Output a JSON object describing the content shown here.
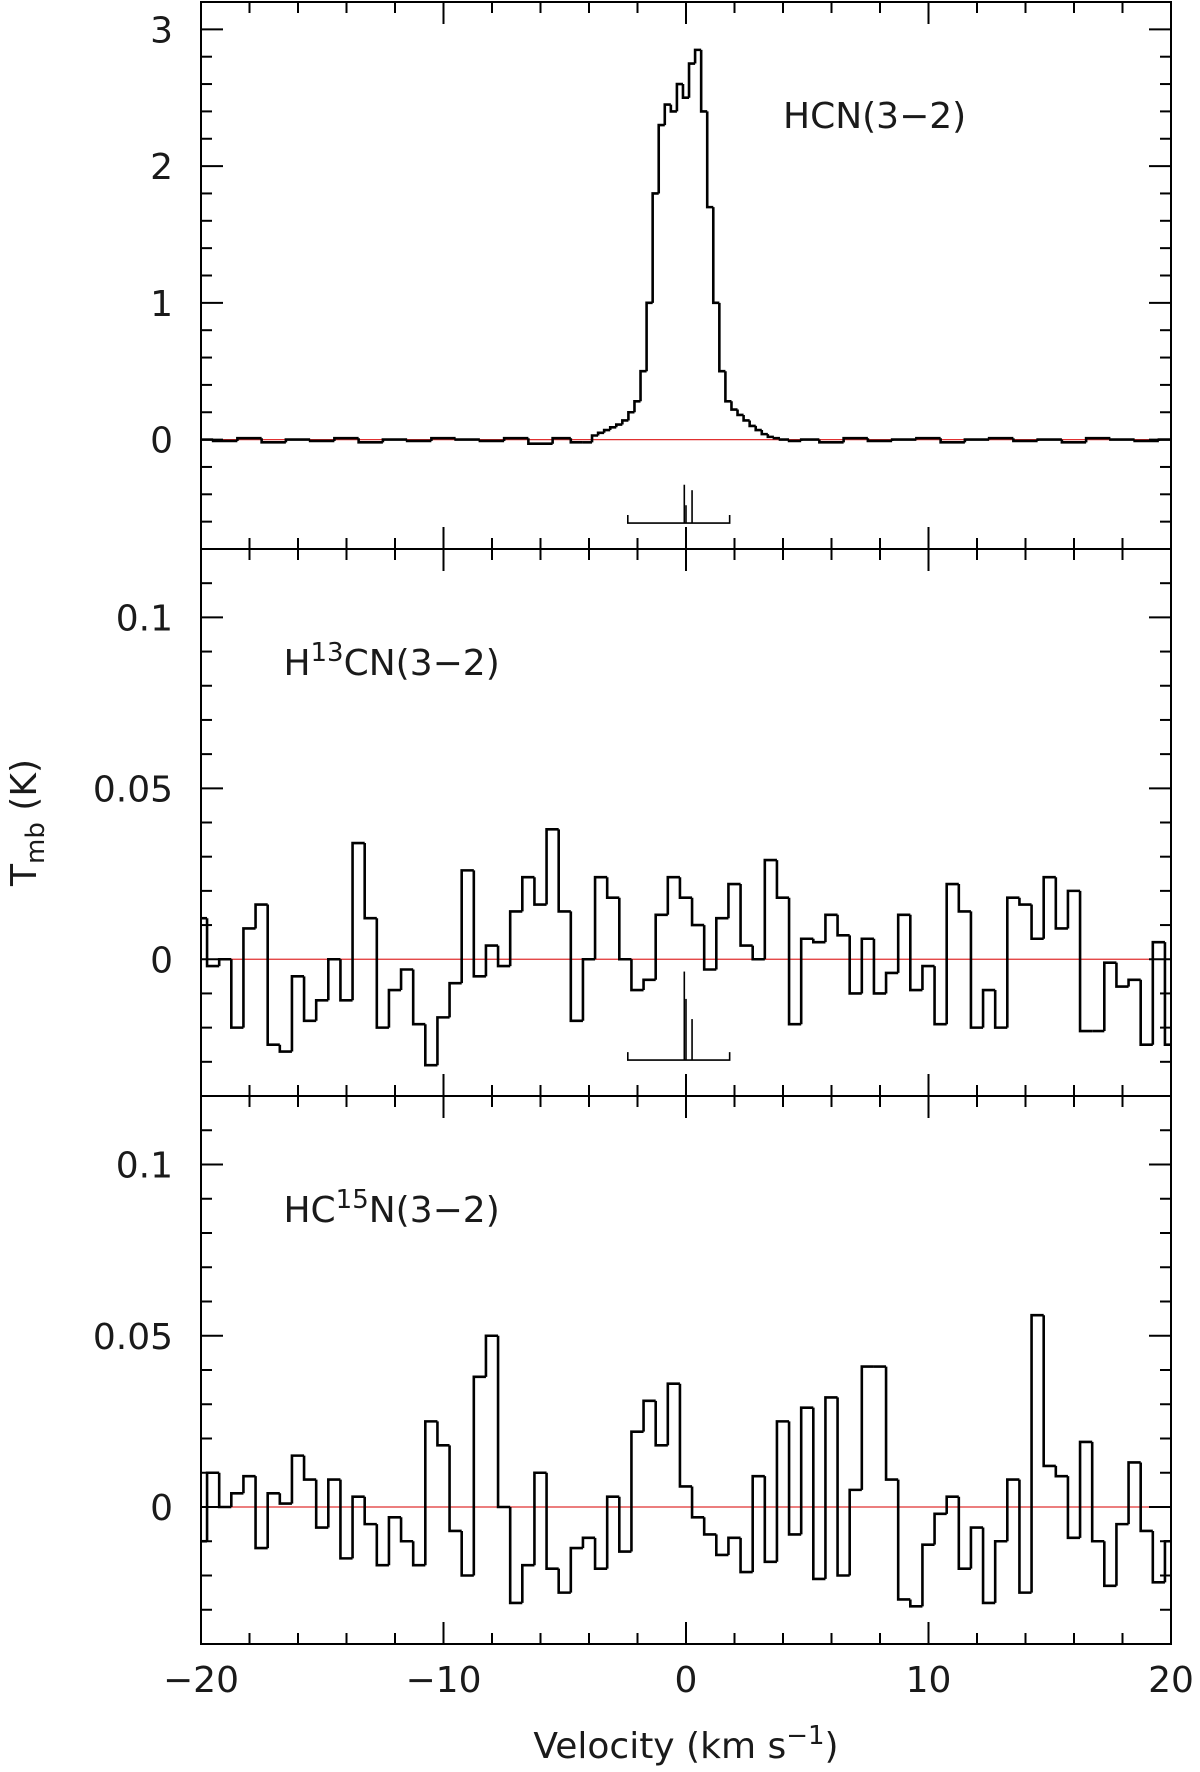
{
  "chart_data": [
    {
      "type": "line",
      "step": true,
      "sharex": true,
      "color": "#000000",
      "zero_line_color": "#e03030",
      "label": [
        {
          "text": "HCN(3−2)"
        }
      ],
      "ylim": [
        -0.8,
        3.2
      ],
      "yticks": [
        0,
        1,
        2,
        3
      ],
      "yminorticks": [
        -0.6,
        -0.4,
        -0.2,
        0.2,
        0.4,
        0.6,
        0.8,
        1.2,
        1.4,
        1.6,
        1.8,
        2.2,
        2.4,
        2.6,
        2.8,
        3.2
      ],
      "x": [
        -20,
        -19,
        -18,
        -17,
        -16,
        -15,
        -14,
        -13,
        -12,
        -11,
        -10,
        -9,
        -8,
        -7,
        -6,
        -5,
        -4.5,
        -4,
        -3.75,
        -3.5,
        -3.25,
        -3,
        -2.75,
        -2.5,
        -2.25,
        -2,
        -1.75,
        -1.5,
        -1.25,
        -1,
        -0.75,
        -0.5,
        -0.25,
        0,
        0.25,
        0.5,
        0.75,
        1,
        1.25,
        1.5,
        1.75,
        2,
        2.25,
        2.5,
        2.75,
        3,
        3.25,
        3.5,
        3.75,
        4,
        4.5,
        5,
        6,
        7,
        8,
        9,
        10,
        11,
        12,
        13,
        14,
        15,
        16,
        17,
        18,
        19,
        20
      ],
      "values": [
        0,
        -0.01,
        0.01,
        -0.02,
        0,
        -0.01,
        0.01,
        -0.02,
        0,
        -0.01,
        0.01,
        0,
        -0.01,
        0.01,
        -0.03,
        0.01,
        -0.02,
        -0.02,
        0.03,
        0.05,
        0.07,
        0.09,
        0.11,
        0.14,
        0.2,
        0.28,
        0.5,
        1.0,
        1.8,
        2.3,
        2.45,
        2.4,
        2.6,
        2.5,
        2.75,
        2.85,
        2.4,
        1.7,
        1.0,
        0.5,
        0.28,
        0.22,
        0.18,
        0.14,
        0.1,
        0.07,
        0.04,
        0.02,
        0.01,
        0,
        -0.01,
        0,
        -0.02,
        0.01,
        -0.01,
        0,
        0.01,
        -0.02,
        0,
        0.01,
        -0.01,
        0,
        -0.02,
        0.01,
        0,
        -0.01,
        0
      ],
      "hyperfine": {
        "base": -0.61,
        "span": [
          -2.4,
          1.8
        ],
        "lines": [
          [
            -0.07,
            -0.33
          ],
          [
            0,
            -0.48
          ],
          [
            0.25,
            -0.37
          ]
        ]
      }
    },
    {
      "type": "line",
      "step": true,
      "sharex": true,
      "color": "#000000",
      "zero_line_color": "#e03030",
      "label": [
        {
          "text": "H"
        },
        {
          "text": "13",
          "sup": true
        },
        {
          "text": "CN(3−2)"
        }
      ],
      "ylabel": [
        {
          "text": "T"
        },
        {
          "text": "mb",
          "sub": true
        },
        {
          "text": " (K)"
        }
      ],
      "ylim": [
        -0.04,
        0.12
      ],
      "yticks": [
        0,
        0.05,
        0.1
      ],
      "yminorticks": [
        -0.03,
        -0.02,
        -0.01,
        0.01,
        0.02,
        0.03,
        0.04,
        0.06,
        0.07,
        0.08,
        0.09,
        0.11
      ],
      "x": [
        -20,
        -19.5,
        -19,
        -18.5,
        -18,
        -17.5,
        -17,
        -16.5,
        -16,
        -15.5,
        -15,
        -14.5,
        -14,
        -13.5,
        -13,
        -12.5,
        -12,
        -11.5,
        -11,
        -10.5,
        -10,
        -9.5,
        -9,
        -8.5,
        -8,
        -7.5,
        -7,
        -6.5,
        -6,
        -5.5,
        -5,
        -4.5,
        -4,
        -3.5,
        -3,
        -2.5,
        -2,
        -1.5,
        -1,
        -0.5,
        0,
        0.5,
        1,
        1.5,
        2,
        2.5,
        3,
        3.5,
        4,
        4.5,
        5,
        5.5,
        6,
        6.5,
        7,
        7.5,
        8,
        8.5,
        9,
        9.5,
        10,
        10.5,
        11,
        11.5,
        12,
        12.5,
        13,
        13.5,
        14,
        14.5,
        15,
        15.5,
        16,
        16.5,
        17,
        17.5,
        18,
        18.5,
        19,
        19.5,
        20
      ],
      "values": [
        0.012,
        -0.002,
        0.0,
        -0.02,
        0.009,
        0.016,
        -0.025,
        -0.027,
        -0.005,
        -0.018,
        -0.012,
        0.0,
        -0.012,
        0.034,
        0.012,
        -0.02,
        -0.009,
        -0.003,
        -0.019,
        -0.031,
        -0.017,
        -0.007,
        0.026,
        -0.005,
        0.004,
        -0.002,
        0.014,
        0.024,
        0.016,
        0.038,
        0.014,
        -0.018,
        0.0,
        0.024,
        0.018,
        0.0,
        -0.009,
        -0.006,
        0.013,
        0.024,
        0.018,
        0.01,
        -0.003,
        0.012,
        0.022,
        0.004,
        0.0,
        0.029,
        0.018,
        -0.019,
        0.006,
        0.005,
        0.013,
        0.007,
        -0.01,
        0.006,
        -0.01,
        -0.004,
        0.013,
        -0.009,
        -0.002,
        -0.019,
        0.022,
        0.014,
        -0.02,
        -0.009,
        -0.02,
        0.018,
        0.016,
        0.006,
        0.024,
        0.009,
        0.02,
        -0.021,
        -0.021,
        -0.001,
        -0.008,
        -0.006,
        -0.025,
        0.005,
        -0.025
      ],
      "hyperfine": {
        "base": -0.0295,
        "span": [
          -2.4,
          1.8
        ],
        "lines": [
          [
            -0.07,
            -0.0036
          ],
          [
            0,
            -0.0116
          ],
          [
            0.25,
            -0.0175
          ]
        ]
      }
    },
    {
      "type": "line",
      "step": true,
      "color": "#000000",
      "zero_line_color": "#e03030",
      "label": [
        {
          "text": "HC"
        },
        {
          "text": "15",
          "sup": true
        },
        {
          "text": "N(3−2)"
        }
      ],
      "xlabel": [
        {
          "text": "Velocity (km s"
        },
        {
          "text": "−1",
          "sup": true
        },
        {
          "text": ")"
        }
      ],
      "xlim": [
        -20,
        20
      ],
      "xticks": [
        {
          "value": -20,
          "label": "−20"
        },
        {
          "value": -10,
          "label": "−10"
        },
        0,
        10,
        20
      ],
      "xminorticks": [
        -18,
        -16,
        -14,
        -12,
        -8,
        -6,
        -4,
        -2,
        2,
        4,
        6,
        8,
        12,
        14,
        16,
        18
      ],
      "ylim": [
        -0.04,
        0.12
      ],
      "yticks": [
        0,
        0.05,
        0.1
      ],
      "yminorticks": [
        -0.03,
        -0.02,
        -0.01,
        0.01,
        0.02,
        0.03,
        0.04,
        0.06,
        0.07,
        0.08,
        0.09,
        0.11
      ],
      "x": [
        -20,
        -19.5,
        -19,
        -18.5,
        -18,
        -17.5,
        -17,
        -16.5,
        -16,
        -15.5,
        -15,
        -14.5,
        -14,
        -13.5,
        -13,
        -12.5,
        -12,
        -11.5,
        -11,
        -10.5,
        -10,
        -9.5,
        -9,
        -8.5,
        -8,
        -7.5,
        -7,
        -6.5,
        -6,
        -5.5,
        -5,
        -4.5,
        -4,
        -3.5,
        -3,
        -2.5,
        -2,
        -1.5,
        -1,
        -0.5,
        0,
        0.5,
        1,
        1.5,
        2,
        2.5,
        3,
        3.5,
        4,
        4.5,
        5,
        5.5,
        6,
        6.5,
        7,
        7.5,
        8,
        8.5,
        9,
        9.5,
        10,
        10.5,
        11,
        11.5,
        12,
        12.5,
        13,
        13.5,
        14,
        14.5,
        15,
        15.5,
        16,
        16.5,
        17,
        17.5,
        18,
        18.5,
        19,
        19.5,
        20
      ],
      "values": [
        -0.01,
        0.01,
        0.0,
        0.004,
        0.009,
        -0.012,
        0.004,
        0.001,
        0.015,
        0.008,
        -0.006,
        0.008,
        -0.015,
        0.003,
        -0.005,
        -0.017,
        -0.003,
        -0.01,
        -0.017,
        0.025,
        0.018,
        -0.007,
        -0.02,
        0.038,
        0.05,
        0.0,
        -0.028,
        -0.017,
        0.01,
        -0.018,
        -0.025,
        -0.012,
        -0.009,
        -0.018,
        0.003,
        -0.013,
        0.022,
        0.031,
        0.018,
        0.036,
        0.006,
        -0.003,
        -0.008,
        -0.014,
        -0.009,
        -0.019,
        0.009,
        -0.016,
        0.025,
        -0.008,
        0.029,
        -0.021,
        0.032,
        -0.02,
        0.005,
        0.041,
        0.041,
        0.008,
        -0.027,
        -0.029,
        -0.011,
        -0.002,
        0.003,
        -0.018,
        -0.006,
        -0.028,
        -0.01,
        0.008,
        -0.025,
        0.056,
        0.012,
        0.009,
        -0.009,
        0.019,
        -0.01,
        -0.023,
        -0.005,
        0.013,
        -0.007,
        -0.022,
        -0.01
      ]
    }
  ]
}
